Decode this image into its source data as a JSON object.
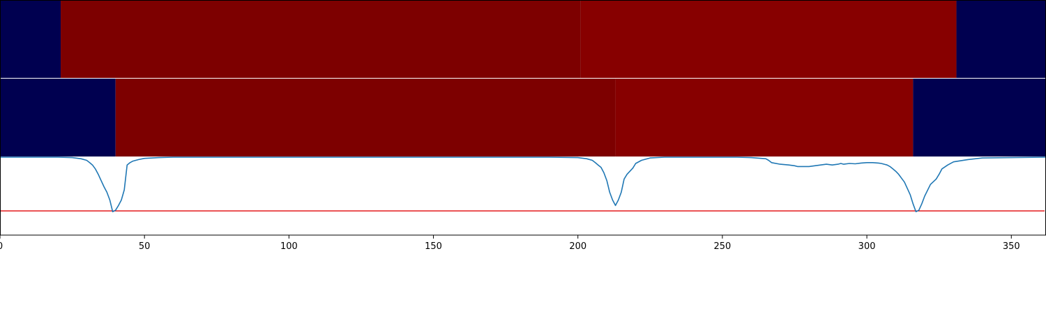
{
  "chart_data": {
    "type": "heatmap",
    "x_range": [
      0,
      362
    ],
    "x_ticks": [
      0,
      50,
      100,
      150,
      200,
      250,
      300,
      350
    ],
    "x_tick_labels": [
      "0",
      "50",
      "100",
      "150",
      "200",
      "250",
      "300",
      "350"
    ],
    "grid": false,
    "legend": "none",
    "heatmap_rows": [
      {
        "segments": [
          {
            "x0": 0,
            "x1": 21,
            "color": "#000050"
          },
          {
            "x0": 21,
            "x1": 201,
            "color": "#7d0000"
          },
          {
            "x0": 201,
            "x1": 331,
            "color": "#870000"
          },
          {
            "x0": 331,
            "x1": 362,
            "color": "#000050"
          }
        ]
      },
      {
        "segments": [
          {
            "x0": 0,
            "x1": 40,
            "color": "#000050"
          },
          {
            "x0": 40,
            "x1": 213,
            "color": "#7d0000"
          },
          {
            "x0": 213,
            "x1": 316,
            "color": "#870000"
          },
          {
            "x0": 316,
            "x1": 362,
            "color": "#000050"
          }
        ]
      }
    ],
    "line_panel": {
      "ylim": [
        0,
        1
      ],
      "threshold": {
        "y": 0.31,
        "color": "#e41a1c"
      },
      "series": [
        {
          "color": "#1f77b4",
          "x": [
            0,
            20,
            25,
            28,
            30,
            31,
            32,
            33,
            34,
            35,
            36,
            37,
            38,
            39,
            40,
            41,
            42,
            43,
            44,
            45,
            46,
            48,
            50,
            55,
            60,
            80,
            100,
            150,
            190,
            200,
            203,
            205,
            206,
            207,
            208,
            209,
            210,
            211,
            212,
            213,
            214,
            215,
            216,
            217,
            218,
            219,
            220,
            222,
            225,
            230,
            240,
            250,
            255,
            260,
            265,
            266,
            267,
            270,
            273,
            275,
            276,
            278,
            280,
            282,
            284,
            286,
            288,
            290,
            291,
            292,
            294,
            296,
            298,
            300,
            302,
            304,
            305,
            306,
            307,
            308,
            309,
            310,
            311,
            312,
            313,
            314,
            315,
            316,
            317,
            318,
            319,
            320,
            322,
            324,
            325,
            326,
            328,
            330,
            335,
            340,
            362
          ],
          "y": [
            1.0,
            1.0,
            0.995,
            0.98,
            0.96,
            0.93,
            0.9,
            0.85,
            0.78,
            0.7,
            0.62,
            0.55,
            0.45,
            0.3,
            0.32,
            0.38,
            0.45,
            0.58,
            0.9,
            0.93,
            0.95,
            0.97,
            0.985,
            0.995,
            1.0,
            1.0,
            1.0,
            1.0,
            1.0,
            0.995,
            0.98,
            0.96,
            0.93,
            0.9,
            0.87,
            0.8,
            0.7,
            0.55,
            0.45,
            0.38,
            0.45,
            0.55,
            0.72,
            0.78,
            0.82,
            0.86,
            0.92,
            0.96,
            0.99,
            1.0,
            1.0,
            1.0,
            1.0,
            0.995,
            0.98,
            0.96,
            0.93,
            0.91,
            0.9,
            0.89,
            0.88,
            0.88,
            0.88,
            0.89,
            0.9,
            0.91,
            0.9,
            0.91,
            0.92,
            0.91,
            0.92,
            0.915,
            0.925,
            0.93,
            0.93,
            0.925,
            0.92,
            0.91,
            0.9,
            0.88,
            0.85,
            0.82,
            0.78,
            0.73,
            0.68,
            0.6,
            0.52,
            0.4,
            0.3,
            0.32,
            0.4,
            0.5,
            0.65,
            0.72,
            0.78,
            0.85,
            0.9,
            0.94,
            0.97,
            0.99,
            1.0
          ]
        }
      ]
    }
  }
}
